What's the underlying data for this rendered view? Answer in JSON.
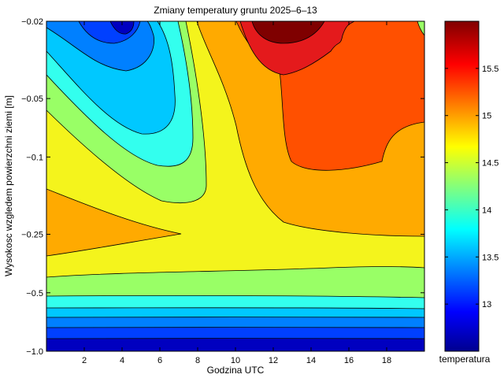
{
  "chart_data": {
    "type": "heatmap",
    "title": "Zmiany temperatury gruntu 2025–6–13",
    "xlabel": "Godzina UTC",
    "ylabel": "Wysokosc wzgledem powierzchni ziemi [m]",
    "colorbar_label": "temperatura",
    "xlim": [
      0,
      20
    ],
    "x_ticks": [
      2,
      4,
      6,
      8,
      10,
      12,
      14,
      16,
      18
    ],
    "x_tick_labels": [
      "2",
      "4",
      "6",
      "8",
      "10",
      "12",
      "14",
      "16",
      "18"
    ],
    "y_tick_labels": [
      "−0.02",
      "−0.05",
      "−0.1",
      "−0.25",
      "−0.5",
      "−1.0"
    ],
    "y_depths": [
      -0.02,
      -0.05,
      -0.1,
      -0.25,
      -0.5,
      -1.0
    ],
    "colorbar_ticks": [
      13,
      13.5,
      14,
      14.5,
      15,
      15.5
    ],
    "colorbar_tick_labels": [
      "13",
      "13.5",
      "14",
      "14.5",
      "15",
      "15.5"
    ],
    "colorbar_range": [
      12.5,
      16.0
    ],
    "grid": false,
    "colormap": "jet",
    "colors": {
      "darkred": "#7f0000",
      "red": "#e41a1c",
      "redorange": "#ff5000",
      "orange": "#ffaa00",
      "yellow": "#f4f41c",
      "green": "#99ff66",
      "cyan": "#33ffee",
      "lightblue": "#00c8ff",
      "blue": "#0080ff",
      "medblue": "#0040ff",
      "darkblue": "#0000c0"
    }
  }
}
